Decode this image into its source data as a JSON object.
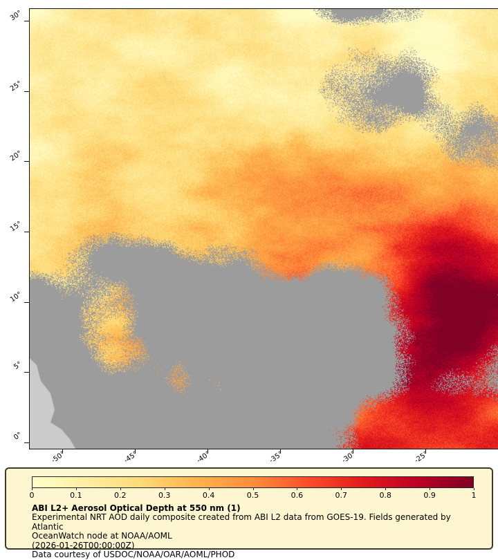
{
  "figure": {
    "map": {
      "lat_ticks": [
        {
          "label": "30°",
          "lat": 30
        },
        {
          "label": "25°",
          "lat": 25
        },
        {
          "label": "20°",
          "lat": 20
        },
        {
          "label": "15°",
          "lat": 15
        },
        {
          "label": "10°",
          "lat": 10
        },
        {
          "label": "5°",
          "lat": 5
        },
        {
          "label": "0°",
          "lat": 0
        }
      ],
      "lon_ticks": [
        {
          "label": "-50°",
          "lon": -50
        },
        {
          "label": "-45°",
          "lon": -45
        },
        {
          "label": "-40°",
          "lon": -40
        },
        {
          "label": "-35°",
          "lon": -35
        },
        {
          "label": "-30°",
          "lon": -30
        },
        {
          "label": "-25°",
          "lon": -25
        }
      ]
    },
    "colorbar": {
      "min": 0,
      "max": 1,
      "tick_labels": [
        "0",
        "0.1",
        "0.2",
        "0.3",
        "0.4",
        "0.5",
        "0.6",
        "0.7",
        "0.8",
        "0.9",
        "1"
      ],
      "stops": [
        "#ffffcc",
        "#ffeda0",
        "#fed976",
        "#feb24c",
        "#fd8d3c",
        "#fc4e2a",
        "#e31a1c",
        "#bd0026",
        "#800026"
      ]
    },
    "legend": {
      "title": "ABI L2+ Aerosol Optical Depth at 550 nm (1)",
      "lines": [
        "Experimental NRT AOD daily composite created from ABI L2 data from GOES-19. Fields generated by Atlantic",
        "OceanWatch node at NOAA/AOML",
        "(2026-01-26T00:00:00Z)",
        "Data courtesy of USDOC/NOAA/OAR/AOML/PHOD"
      ]
    },
    "colors": {
      "no_data_gray": "#9c9c9c",
      "land_gray": "#cbcbcb",
      "legend_bg": "#fdf6d0",
      "legend_border": "#3c3c28",
      "axis_color": "#111111"
    }
  }
}
